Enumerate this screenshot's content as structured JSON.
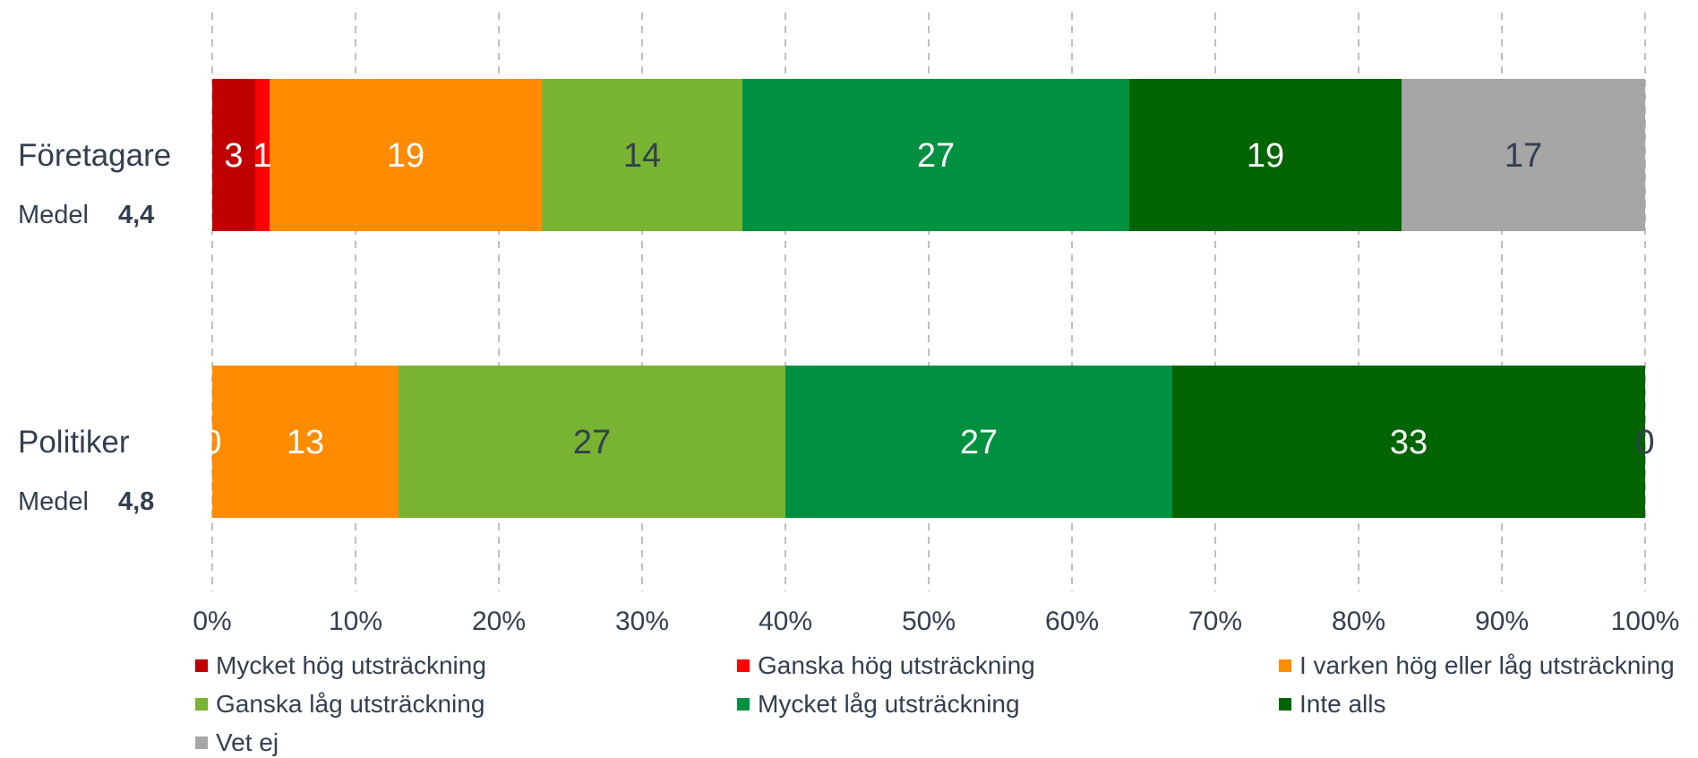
{
  "chart_data": {
    "type": "bar",
    "orientation": "horizontal",
    "stacked": true,
    "categories": [
      {
        "label": "Företagare",
        "mean_label": "Medel",
        "mean_value": "4,4"
      },
      {
        "label": "Politiker",
        "mean_label": "Medel",
        "mean_value": "4,8"
      }
    ],
    "series": [
      {
        "name": "Mycket hög utsträckning",
        "color": "#c00000",
        "label_color": "#ffffff",
        "values": [
          3,
          0
        ]
      },
      {
        "name": "Ganska hög utsträckning",
        "color": "#ff0000",
        "label_color": "#ffffff",
        "values": [
          1,
          0
        ]
      },
      {
        "name": "I varken hög eller låg utsträckning",
        "color": "#ff8c00",
        "label_color": "#ffffff",
        "values": [
          19,
          13
        ]
      },
      {
        "name": "Ganska låg utsträckning",
        "color": "#78b432",
        "label_color": "#333f4f",
        "values": [
          14,
          27
        ]
      },
      {
        "name": "Mycket låg utsträckning",
        "color": "#009140",
        "label_color": "#ffffff",
        "values": [
          27,
          27
        ]
      },
      {
        "name": "Inte alls",
        "color": "#006400",
        "label_color": "#ffffff",
        "values": [
          19,
          33
        ]
      },
      {
        "name": "Vet ej",
        "color": "#a6a6a6",
        "label_color": "#333f4f",
        "values": [
          17,
          0
        ]
      }
    ],
    "data_labels": [
      [
        "3",
        "1",
        "19",
        "14",
        "27",
        "19",
        "17"
      ],
      [
        "0",
        "",
        "13",
        "27",
        "27",
        "33",
        "0"
      ]
    ],
    "xlim": [
      0,
      100
    ],
    "x_ticks": [
      "0%",
      "10%",
      "20%",
      "30%",
      "40%",
      "50%",
      "60%",
      "70%",
      "80%",
      "90%",
      "100%"
    ],
    "grid": "vertical dashed",
    "legend_position": "bottom"
  }
}
